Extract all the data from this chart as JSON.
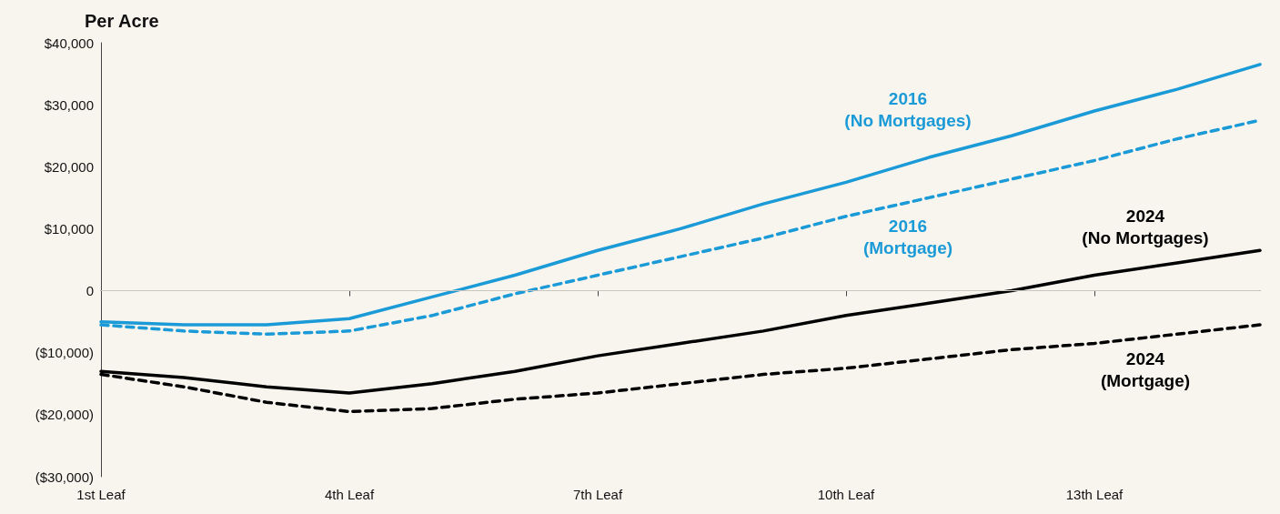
{
  "chart_data": {
    "type": "line",
    "ylabel": "Per Acre",
    "categories": [
      "1st Leaf",
      null,
      null,
      "4th Leaf",
      null,
      null,
      "7th Leaf",
      null,
      null,
      "10th Leaf",
      null,
      null,
      "13th Leaf",
      null,
      null
    ],
    "ylim": [
      -30000,
      40000
    ],
    "yticks": [
      {
        "value": -30000,
        "label": "($30,000)"
      },
      {
        "value": -20000,
        "label": "($20,000)"
      },
      {
        "value": -10000,
        "label": "($10,000)"
      },
      0,
      {
        "value": 10000,
        "label": "$10,000"
      },
      {
        "value": 20000,
        "label": "$20,000"
      },
      {
        "value": 30000,
        "label": "$30,000"
      },
      {
        "value": 40000,
        "label": "$40,000"
      }
    ],
    "grid": false,
    "legend": false,
    "marker": "none",
    "ref_lines": [
      {
        "axis": "y",
        "value": 0,
        "color": "#c8c4be"
      }
    ],
    "series": [
      {
        "name": "2016\n(No Mortgages)",
        "color": "#1a9ad6",
        "line_style": "solid",
        "values": [
          -5000,
          -5500,
          -5500,
          -4500,
          -1000,
          2500,
          6500,
          10000,
          14000,
          17500,
          21500,
          25000,
          29000,
          32500,
          36500
        ]
      },
      {
        "name": "2016\n(Mortgage)",
        "color": "#1a9ad6",
        "line_style": "dashed",
        "values": [
          -5500,
          -6500,
          -7000,
          -6500,
          -4000,
          -500,
          2500,
          5500,
          8500,
          12000,
          15000,
          18000,
          21000,
          24500,
          27500
        ]
      },
      {
        "name": "2024\n(No Mortgages)",
        "color": "#000000",
        "line_style": "solid",
        "values": [
          -13000,
          -14000,
          -15500,
          -16500,
          -15000,
          -13000,
          -10500,
          -8500,
          -6500,
          -4000,
          -2000,
          0,
          2500,
          4500,
          6500
        ]
      },
      {
        "name": "2024\n(Mortgage)",
        "color": "#000000",
        "line_style": "dashed",
        "values": [
          -13500,
          -15500,
          -18000,
          -19500,
          -19000,
          -17500,
          -16500,
          -15000,
          -13500,
          -12500,
          -11000,
          -9500,
          -8500,
          -7000,
          -5500
        ]
      }
    ]
  }
}
